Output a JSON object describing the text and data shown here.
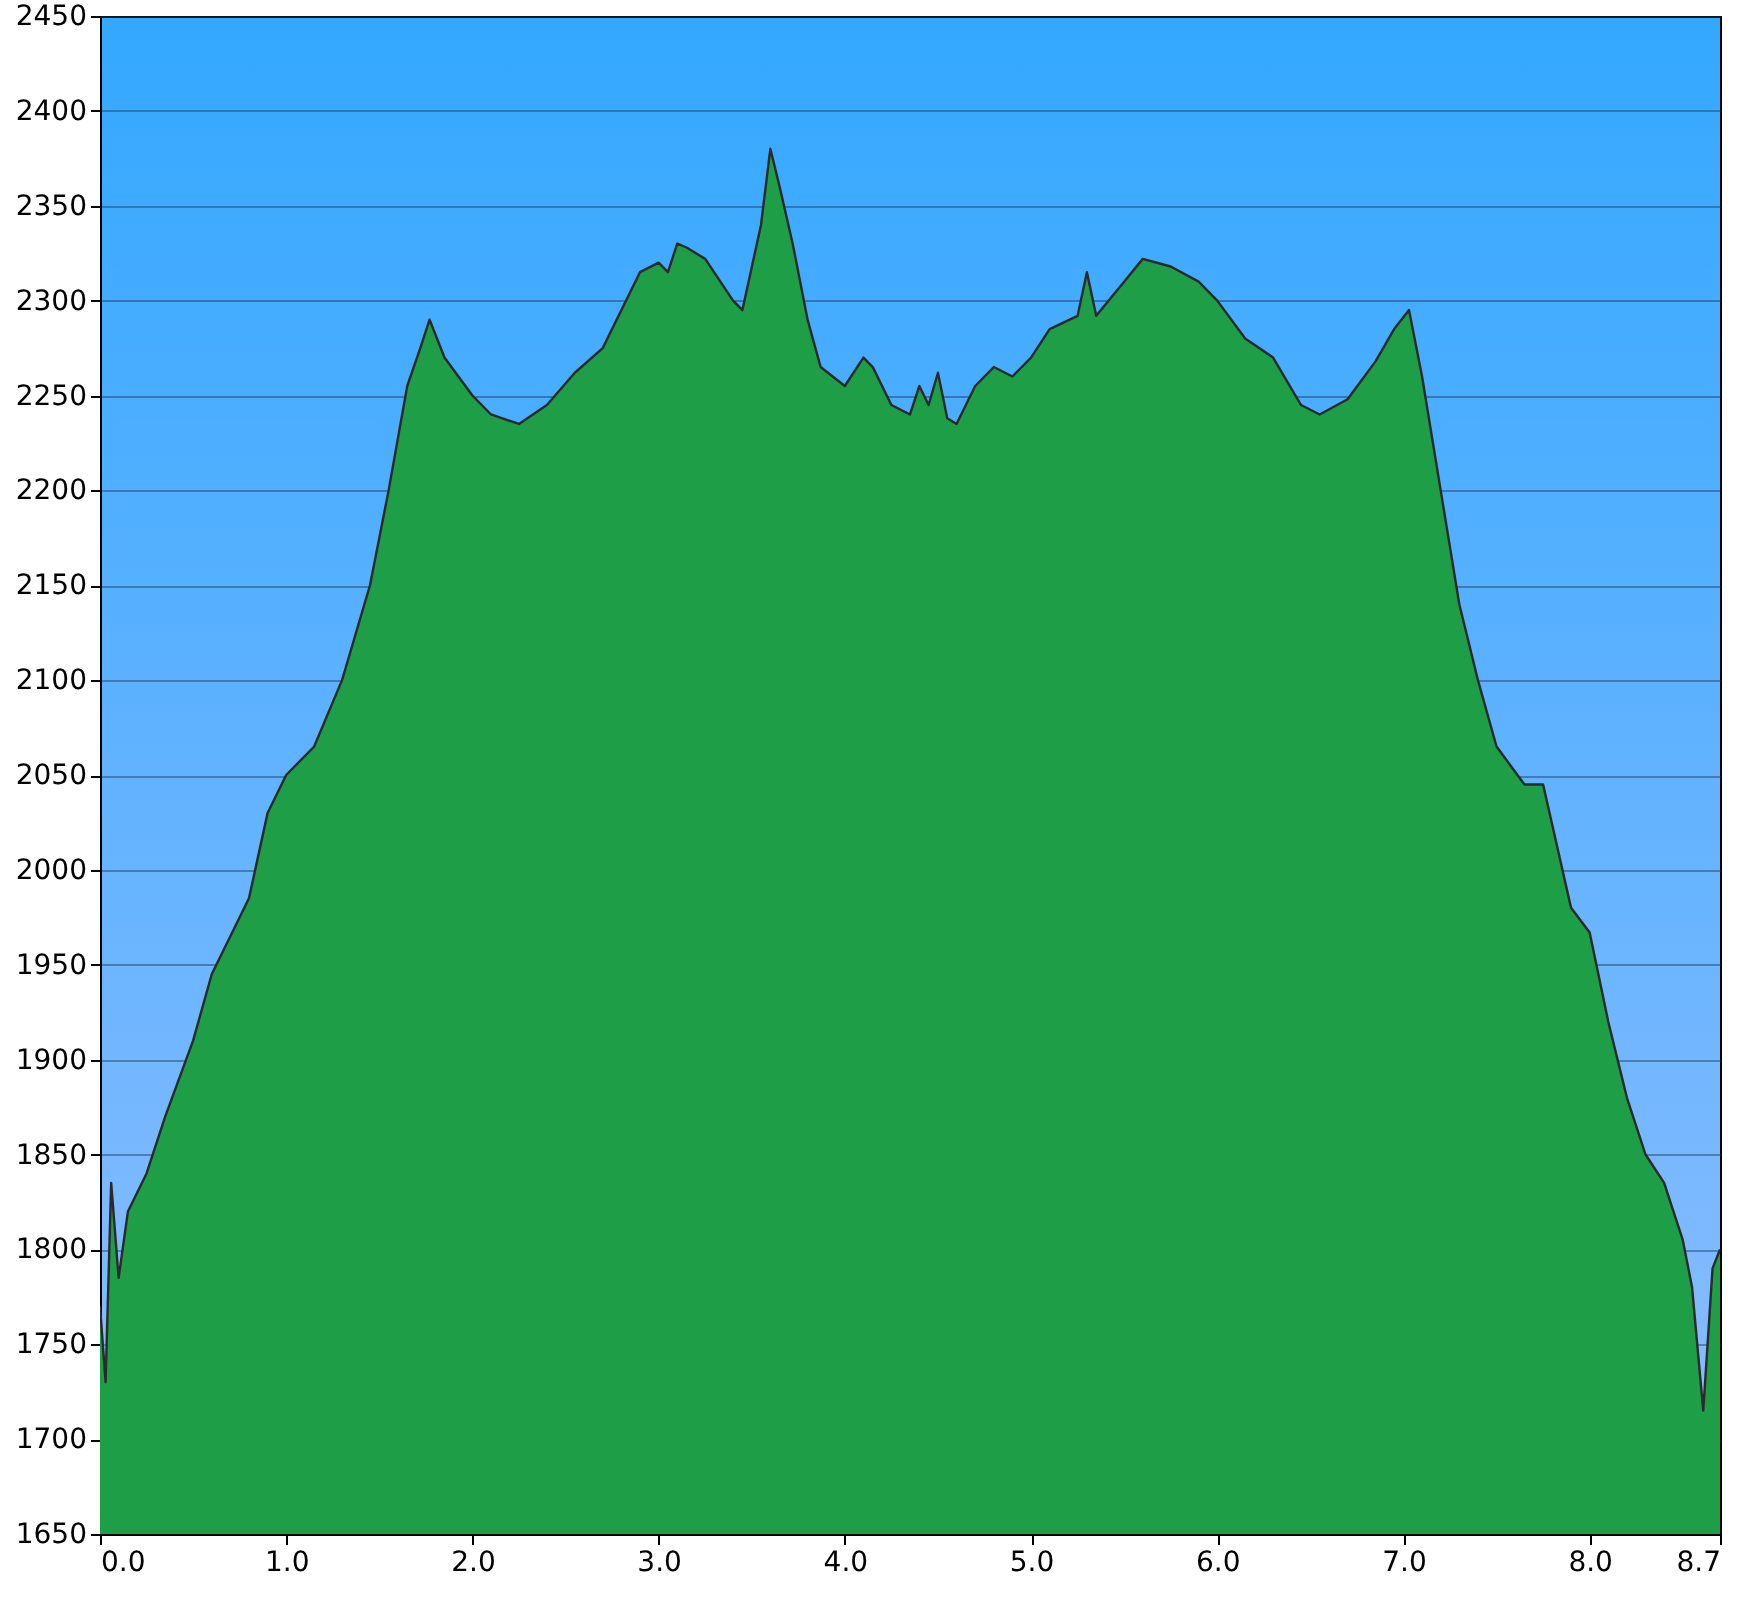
{
  "chart_data": {
    "type": "area",
    "x": [
      0,
      0.03,
      0.06,
      0.1,
      0.15,
      0.25,
      0.35,
      0.5,
      0.6,
      0.8,
      0.9,
      1.0,
      1.15,
      1.3,
      1.45,
      1.55,
      1.65,
      1.72,
      1.77,
      1.85,
      2.0,
      2.1,
      2.25,
      2.4,
      2.55,
      2.7,
      2.8,
      2.9,
      3.0,
      3.05,
      3.1,
      3.15,
      3.25,
      3.4,
      3.45,
      3.55,
      3.6,
      3.65,
      3.72,
      3.8,
      3.87,
      4.0,
      4.1,
      4.15,
      4.25,
      4.35,
      4.4,
      4.45,
      4.5,
      4.55,
      4.6,
      4.7,
      4.8,
      4.9,
      5.0,
      5.1,
      5.25,
      5.3,
      5.35,
      5.5,
      5.6,
      5.75,
      5.9,
      6.0,
      6.15,
      6.3,
      6.45,
      6.55,
      6.7,
      6.85,
      6.95,
      7.03,
      7.1,
      7.2,
      7.3,
      7.4,
      7.5,
      7.65,
      7.75,
      7.9,
      8.0,
      8.1,
      8.2,
      8.3,
      8.4,
      8.5,
      8.55,
      8.61,
      8.66,
      8.7
    ],
    "series": [
      {
        "color": "#1f9e48",
        "values": [
          1770,
          1730,
          1835,
          1785,
          1820,
          1840,
          1870,
          1910,
          1945,
          1985,
          2030,
          2050,
          2065,
          2100,
          2150,
          2200,
          2255,
          2275,
          2290,
          2270,
          2250,
          2240,
          2235,
          2245,
          2262,
          2275,
          2295,
          2315,
          2320,
          2315,
          2330,
          2328,
          2322,
          2300,
          2295,
          2340,
          2380,
          2360,
          2330,
          2290,
          2265,
          2255,
          2270,
          2265,
          2245,
          2240,
          2255,
          2245,
          2262,
          2238,
          2235,
          2255,
          2265,
          2260,
          2270,
          2285,
          2292,
          2315,
          2292,
          2310,
          2322,
          2318,
          2310,
          2300,
          2280,
          2270,
          2245,
          2240,
          2248,
          2268,
          2285,
          2295,
          2260,
          2200,
          2140,
          2100,
          2065,
          2045,
          2045,
          1980,
          1967,
          1920,
          1880,
          1850,
          1835,
          1805,
          1780,
          1715,
          1790,
          1800
        ]
      }
    ],
    "xlim": [
      0,
      8.7
    ],
    "xticks": [
      {
        "value": 0,
        "label": "0.0"
      },
      {
        "value": 1,
        "label": "1.0"
      },
      {
        "value": 2,
        "label": "2.0"
      },
      {
        "value": 3,
        "label": "3.0"
      },
      {
        "value": 4,
        "label": "4.0"
      },
      {
        "value": 5,
        "label": "5.0"
      },
      {
        "value": 6,
        "label": "6.0"
      },
      {
        "value": 7,
        "label": "7.0"
      },
      {
        "value": 8,
        "label": "8.0"
      },
      {
        "value": 8.7,
        "label": "8.7"
      }
    ],
    "ylim": [
      1650,
      2450
    ],
    "yticks": [
      1650,
      1700,
      1750,
      1800,
      1850,
      1900,
      1950,
      2000,
      2050,
      2100,
      2150,
      2200,
      2250,
      2300,
      2350,
      2400,
      2450
    ],
    "grid": "y"
  }
}
